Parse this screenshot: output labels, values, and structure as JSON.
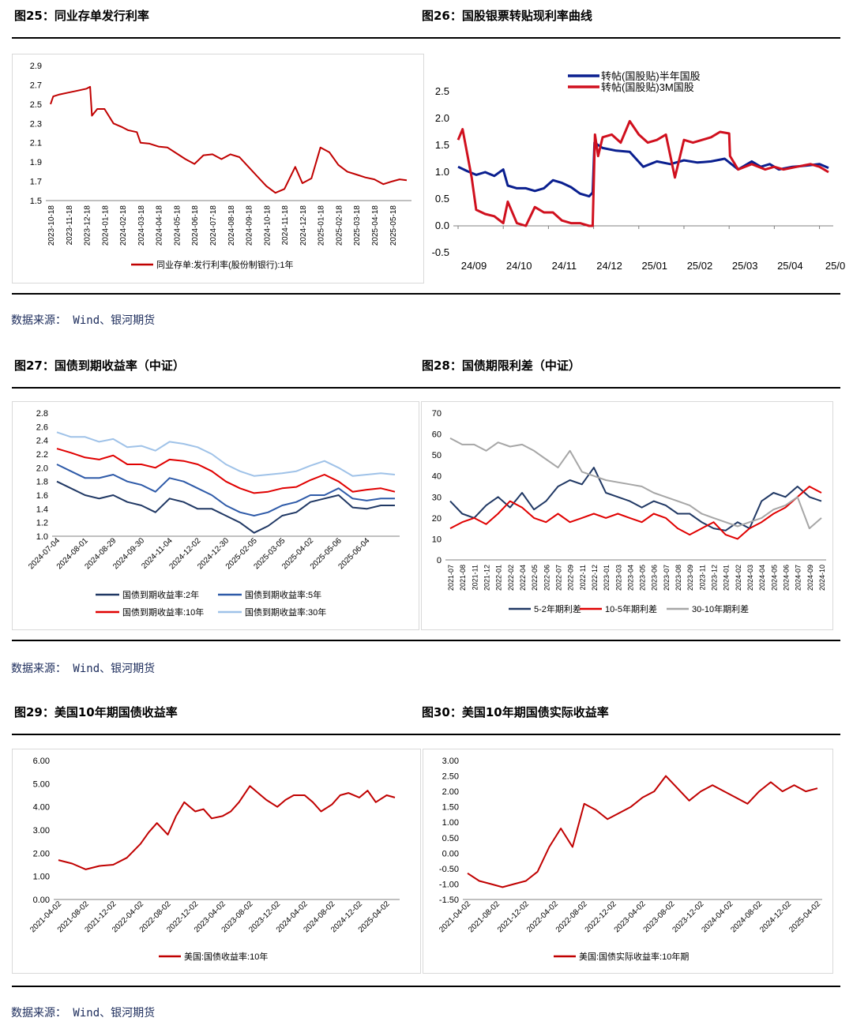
{
  "rows": [
    {
      "left_title": "图25：同业存单发行利率",
      "right_title": "图26：国股银票转贴现利率曲线",
      "source": "数据来源： Wind、银河期货"
    },
    {
      "left_title": "图27：国债到期收益率（中证）",
      "right_title": "图28：国债期限利差（中证）",
      "source": "数据来源： Wind、银河期货"
    },
    {
      "left_title": "图29：美国10年期国债收益率",
      "right_title": "图30：美国10年期国债实际收益率",
      "source": "数据来源： Wind、银河期货"
    }
  ],
  "chart_data": [
    {
      "id": "fig25",
      "type": "line",
      "yticks": [
        "2.9",
        "2.7",
        "2.5",
        "2.3",
        "2.1",
        "1.9",
        "1.7",
        "1.5"
      ],
      "ylim": [
        1.5,
        2.9
      ],
      "xticks": [
        "2023-10-18",
        "2023-11-18",
        "2023-12-18",
        "2024-01-18",
        "2024-02-18",
        "2024-03-18",
        "2024-04-18",
        "2024-05-18",
        "2024-06-18",
        "2024-07-18",
        "2024-08-18",
        "2024-09-18",
        "2024-10-18",
        "2024-11-18",
        "2024-12-18",
        "2025-01-18",
        "2025-02-18",
        "2025-03-18",
        "2025-04-18",
        "2025-05-18"
      ],
      "legend": "同业存单:发行利率(股份制银行):1年",
      "series": [
        {
          "name": "同业存单:发行利率(股份制银行):1年",
          "color": "#c00000",
          "x": [
            0,
            0.15,
            0.5,
            1,
            1.5,
            2,
            2.2,
            2.3,
            2.6,
            3,
            3.5,
            4,
            4.3,
            4.8,
            5,
            5.5,
            6,
            6.5,
            7,
            7.5,
            8,
            8.5,
            9,
            9.5,
            10,
            10.5,
            11,
            11.5,
            12,
            12.5,
            13,
            13.6,
            14,
            14.5,
            15,
            15.5,
            16,
            16.5,
            17,
            17.5,
            18,
            18.5,
            19,
            19.4,
            19.8
          ],
          "values": [
            2.5,
            2.58,
            2.6,
            2.62,
            2.64,
            2.66,
            2.68,
            2.38,
            2.45,
            2.45,
            2.3,
            2.26,
            2.23,
            2.21,
            2.1,
            2.09,
            2.06,
            2.05,
            1.99,
            1.93,
            1.88,
            1.97,
            1.98,
            1.93,
            1.98,
            1.95,
            1.85,
            1.75,
            1.65,
            1.58,
            1.62,
            1.85,
            1.68,
            1.73,
            2.05,
            2.0,
            1.87,
            1.8,
            1.77,
            1.74,
            1.72,
            1.67,
            1.7,
            1.72,
            1.71
          ]
        }
      ]
    },
    {
      "id": "fig26",
      "type": "line",
      "yticks": [
        "2.5",
        "2.0",
        "1.5",
        "1.0",
        "0.5",
        "0.0",
        "-0.5"
      ],
      "ylim": [
        -0.5,
        2.5
      ],
      "xticks": [
        "24/09",
        "24/10",
        "24/11",
        "24/12",
        "25/01",
        "25/02",
        "25/03",
        "25/04",
        "25/0"
      ],
      "legend_top_left": true,
      "series": [
        {
          "name": "转帖(国股贴)半年国股",
          "color": "#0a1f8f",
          "x": [
            0,
            0.2,
            0.4,
            0.6,
            0.8,
            1.0,
            1.1,
            1.3,
            1.5,
            1.7,
            1.9,
            2.1,
            2.3,
            2.5,
            2.7,
            2.9,
            2.98,
            3.02,
            3.2,
            3.5,
            3.8,
            4.1,
            4.4,
            4.7,
            5.0,
            5.3,
            5.6,
            5.9,
            6.2,
            6.5,
            6.7,
            6.9,
            7.1,
            7.4,
            7.7,
            8.0,
            8.2
          ],
          "values": [
            1.1,
            1.02,
            0.95,
            1.0,
            0.93,
            1.05,
            0.75,
            0.7,
            0.7,
            0.65,
            0.7,
            0.85,
            0.8,
            0.72,
            0.6,
            0.55,
            0.62,
            1.55,
            1.45,
            1.4,
            1.38,
            1.1,
            1.2,
            1.15,
            1.22,
            1.18,
            1.2,
            1.25,
            1.05,
            1.2,
            1.1,
            1.15,
            1.05,
            1.1,
            1.12,
            1.15,
            1.08
          ]
        },
        {
          "name": "转帖(国股贴)3M国股",
          "color": "#d0101e",
          "x": [
            0,
            0.1,
            0.3,
            0.4,
            0.6,
            0.8,
            1.0,
            1.1,
            1.3,
            1.5,
            1.7,
            1.9,
            2.1,
            2.3,
            2.5,
            2.7,
            2.9,
            2.98,
            3.03,
            3.1,
            3.2,
            3.4,
            3.6,
            3.8,
            4.0,
            4.2,
            4.4,
            4.6,
            4.8,
            5.0,
            5.2,
            5.4,
            5.6,
            5.8,
            6.0,
            6.02,
            6.2,
            6.5,
            6.8,
            7.0,
            7.2,
            7.5,
            7.8,
            8.0,
            8.2
          ],
          "values": [
            1.6,
            1.8,
            0.9,
            0.3,
            0.22,
            0.18,
            0.05,
            0.45,
            0.05,
            0.0,
            0.35,
            0.25,
            0.25,
            0.1,
            0.05,
            0.05,
            0.0,
            0.0,
            1.7,
            1.3,
            1.65,
            1.7,
            1.55,
            1.95,
            1.7,
            1.55,
            1.6,
            1.7,
            0.9,
            1.6,
            1.55,
            1.6,
            1.65,
            1.75,
            1.72,
            1.3,
            1.05,
            1.15,
            1.05,
            1.1,
            1.05,
            1.1,
            1.15,
            1.1,
            1.0
          ]
        }
      ]
    },
    {
      "id": "fig27",
      "type": "line",
      "yticks": [
        "2.8",
        "2.6",
        "2.4",
        "2.2",
        "2.0",
        "1.8",
        "1.6",
        "1.4",
        "1.2",
        "1.0"
      ],
      "ylim": [
        1.0,
        2.8
      ],
      "xticks": [
        "2024-07-04",
        "2024-08-01",
        "2024-08-29",
        "2024-09-30",
        "2024-11-04",
        "2024-12-02",
        "2024-12-30",
        "2025-02-05",
        "2025-03-05",
        "2025-04-02",
        "2025-05-06",
        "2025-06-04"
      ],
      "legend": [
        "国债到期收益率:2年",
        "国债到期收益率:5年",
        "国债到期收益率:10年",
        "国债到期收益率:30年"
      ],
      "series": [
        {
          "name": "国债到期收益率:2年",
          "color": "#203864",
          "x": [
            0,
            0.5,
            1,
            1.5,
            2,
            2.5,
            3,
            3.5,
            4,
            4.5,
            5,
            5.5,
            6,
            6.5,
            7,
            7.5,
            8,
            8.5,
            9,
            9.5,
            10,
            10.5,
            11,
            11.5,
            12
          ],
          "values": [
            1.8,
            1.7,
            1.6,
            1.55,
            1.6,
            1.5,
            1.45,
            1.35,
            1.55,
            1.5,
            1.4,
            1.4,
            1.3,
            1.2,
            1.05,
            1.15,
            1.3,
            1.35,
            1.5,
            1.55,
            1.6,
            1.42,
            1.4,
            1.45,
            1.45
          ]
        },
        {
          "name": "国债到期收益率:5年",
          "color": "#2e5aa8",
          "x": [
            0,
            0.5,
            1,
            1.5,
            2,
            2.5,
            3,
            3.5,
            4,
            4.5,
            5,
            5.5,
            6,
            6.5,
            7,
            7.5,
            8,
            8.5,
            9,
            9.5,
            10,
            10.5,
            11,
            11.5,
            12
          ],
          "values": [
            2.05,
            1.95,
            1.85,
            1.85,
            1.9,
            1.8,
            1.75,
            1.65,
            1.85,
            1.8,
            1.7,
            1.6,
            1.45,
            1.35,
            1.3,
            1.35,
            1.45,
            1.5,
            1.6,
            1.6,
            1.7,
            1.55,
            1.52,
            1.55,
            1.55
          ]
        },
        {
          "name": "国债到期收益率:10年",
          "color": "#e00000",
          "x": [
            0,
            0.5,
            1,
            1.5,
            2,
            2.5,
            3,
            3.5,
            4,
            4.5,
            5,
            5.5,
            6,
            6.5,
            7,
            7.5,
            8,
            8.5,
            9,
            9.5,
            10,
            10.5,
            11,
            11.5,
            12
          ],
          "values": [
            2.28,
            2.22,
            2.15,
            2.12,
            2.18,
            2.05,
            2.05,
            2.0,
            2.12,
            2.1,
            2.05,
            1.95,
            1.8,
            1.7,
            1.63,
            1.65,
            1.7,
            1.72,
            1.82,
            1.9,
            1.8,
            1.65,
            1.68,
            1.7,
            1.65
          ]
        },
        {
          "name": "国债到期收益率:30年",
          "color": "#9fc2e8",
          "x": [
            0,
            0.5,
            1,
            1.5,
            2,
            2.5,
            3,
            3.5,
            4,
            4.5,
            5,
            5.5,
            6,
            6.5,
            7,
            7.5,
            8,
            8.5,
            9,
            9.5,
            10,
            10.5,
            11,
            11.5,
            12
          ],
          "values": [
            2.52,
            2.45,
            2.45,
            2.38,
            2.42,
            2.3,
            2.32,
            2.25,
            2.38,
            2.35,
            2.3,
            2.2,
            2.05,
            1.95,
            1.88,
            1.9,
            1.92,
            1.95,
            2.03,
            2.1,
            2.0,
            1.88,
            1.9,
            1.92,
            1.9
          ]
        }
      ]
    },
    {
      "id": "fig28",
      "type": "line",
      "yticks": [
        "70",
        "60",
        "50",
        "40",
        "30",
        "20",
        "10",
        "0"
      ],
      "ylim": [
        0,
        70
      ],
      "xticks": [
        "2021-07",
        "2021-08",
        "2021-11",
        "2021-12",
        "2022-01",
        "2022-02",
        "2022-04",
        "2022-05",
        "2022-06",
        "2022-07",
        "2022-09",
        "2022-11",
        "2022-12",
        "2023-01",
        "2023-03",
        "2023-04",
        "2023-05",
        "2023-06",
        "2023-07",
        "2023-08",
        "2023-09",
        "2023-11",
        "2023-12",
        "2024-01",
        "2024-02",
        "2024-03",
        "2024-04",
        "2024-05",
        "2024-06",
        "2024-07",
        "2024-09",
        "2024-10"
      ],
      "legend": [
        "5-2年期利差",
        "10-5年期利差",
        "30-10年期利差"
      ],
      "series": [
        {
          "name": "5-2年期利差",
          "color": "#203864",
          "x": [
            0,
            1,
            2,
            3,
            4,
            5,
            6,
            7,
            8,
            9,
            10,
            11,
            12,
            13,
            14,
            15,
            16,
            17,
            18,
            19,
            20,
            21,
            22,
            23,
            24,
            25,
            26,
            27,
            28,
            29,
            30,
            31
          ],
          "values": [
            28,
            22,
            20,
            26,
            30,
            25,
            32,
            24,
            28,
            35,
            38,
            36,
            44,
            32,
            30,
            28,
            25,
            28,
            26,
            22,
            22,
            18,
            15,
            14,
            18,
            15,
            28,
            32,
            30,
            35,
            30,
            28
          ]
        },
        {
          "name": "10-5年期利差",
          "color": "#e00000",
          "x": [
            0,
            1,
            2,
            3,
            4,
            5,
            6,
            7,
            8,
            9,
            10,
            11,
            12,
            13,
            14,
            15,
            16,
            17,
            18,
            19,
            20,
            21,
            22,
            23,
            24,
            25,
            26,
            27,
            28,
            29,
            30,
            31
          ],
          "values": [
            15,
            18,
            20,
            17,
            22,
            28,
            25,
            20,
            18,
            22,
            18,
            20,
            22,
            20,
            22,
            20,
            18,
            22,
            20,
            15,
            12,
            15,
            18,
            12,
            10,
            15,
            18,
            22,
            25,
            30,
            35,
            32
          ]
        },
        {
          "name": "30-10年期利差",
          "color": "#a6a6a6",
          "x": [
            0,
            1,
            2,
            3,
            4,
            5,
            6,
            7,
            8,
            9,
            10,
            11,
            12,
            13,
            14,
            15,
            16,
            17,
            18,
            19,
            20,
            21,
            22,
            23,
            24,
            25,
            26,
            27,
            28,
            29,
            30,
            31
          ],
          "values": [
            58,
            55,
            55,
            52,
            56,
            54,
            55,
            52,
            48,
            44,
            52,
            42,
            40,
            38,
            37,
            36,
            35,
            32,
            30,
            28,
            26,
            22,
            20,
            18,
            16,
            18,
            20,
            24,
            26,
            30,
            15,
            20
          ]
        }
      ]
    },
    {
      "id": "fig29",
      "type": "line",
      "yticks": [
        "6.00",
        "5.00",
        "4.00",
        "3.00",
        "2.00",
        "1.00",
        "0.00"
      ],
      "ylim": [
        0,
        6
      ],
      "xticks": [
        "2021-04-02",
        "2021-08-02",
        "2021-12-02",
        "2022-04-02",
        "2022-08-02",
        "2022-12-02",
        "2023-04-02",
        "2023-08-02",
        "2023-12-02",
        "2024-04-02",
        "2024-08-02",
        "2024-12-02",
        "2025-04-02"
      ],
      "legend": "美国:国债收益率:10年",
      "series": [
        {
          "name": "美国:国债收益率:10年",
          "color": "#c00000",
          "x": [
            0,
            0.5,
            1,
            1.5,
            2,
            2.5,
            3,
            3.3,
            3.6,
            4,
            4.3,
            4.6,
            5,
            5.3,
            5.6,
            6,
            6.3,
            6.6,
            7,
            7.3,
            7.6,
            8,
            8.3,
            8.6,
            9,
            9.3,
            9.6,
            10,
            10.3,
            10.6,
            11,
            11.3,
            11.6,
            12,
            12.3
          ],
          "values": [
            1.7,
            1.55,
            1.3,
            1.45,
            1.5,
            1.8,
            2.4,
            2.9,
            3.3,
            2.8,
            3.6,
            4.2,
            3.8,
            3.9,
            3.5,
            3.6,
            3.8,
            4.2,
            4.9,
            4.6,
            4.3,
            4.0,
            4.3,
            4.5,
            4.5,
            4.2,
            3.8,
            4.1,
            4.5,
            4.6,
            4.4,
            4.7,
            4.2,
            4.5,
            4.4
          ]
        }
      ]
    },
    {
      "id": "fig30",
      "type": "line",
      "yticks": [
        "3.00",
        "2.50",
        "2.00",
        "1.50",
        "1.00",
        "0.50",
        "0.00",
        "-0.50",
        "-1.00",
        "-1.50"
      ],
      "ylim": [
        -1.5,
        3.0
      ],
      "xticks": [
        "2021-04-02",
        "2021-08-02",
        "2021-12-02",
        "2022-04-02",
        "2022-08-02",
        "2022-12-02",
        "2023-04-02",
        "2023-08-02",
        "2023-12-02",
        "2024-04-02",
        "2024-08-02",
        "2024-12-02",
        "2025-04-02"
      ],
      "legend": "美国:国债实际收益率:10年期",
      "series": [
        {
          "name": "美国:国债实际收益率:10年期",
          "color": "#c00000",
          "x": [
            0,
            0.4,
            0.8,
            1.2,
            1.6,
            2,
            2.4,
            2.8,
            3.2,
            3.6,
            4,
            4.4,
            4.8,
            5.2,
            5.6,
            6,
            6.4,
            6.8,
            7.2,
            7.6,
            8,
            8.4,
            8.8,
            9.2,
            9.6,
            10,
            10.4,
            10.8,
            11.2,
            11.6,
            12
          ],
          "values": [
            -0.65,
            -0.9,
            -1.0,
            -1.1,
            -1.0,
            -0.9,
            -0.6,
            0.2,
            0.8,
            0.2,
            1.6,
            1.4,
            1.1,
            1.3,
            1.5,
            1.8,
            2.0,
            2.5,
            2.1,
            1.7,
            2.0,
            2.2,
            2.0,
            1.8,
            1.6,
            2.0,
            2.3,
            2.0,
            2.2,
            2.0,
            2.1
          ]
        }
      ]
    }
  ]
}
